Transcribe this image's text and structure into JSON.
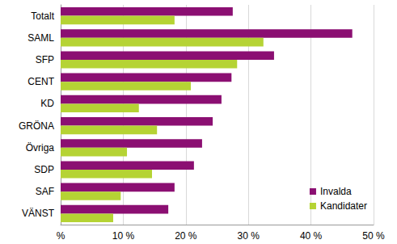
{
  "chart_data": {
    "type": "bar",
    "orientation": "horizontal",
    "categories": [
      "Totalt",
      "SAML",
      "SFP",
      "CENT",
      "KD",
      "GRÖNA",
      "Övriga",
      "SDP",
      "SAF",
      "VÄNST"
    ],
    "series": [
      {
        "name": "Invalda",
        "color": "#8b0f72",
        "values": [
          27.5,
          46.6,
          34.1,
          27.3,
          25.7,
          24.3,
          22.6,
          21.3,
          18.2,
          17.2
        ]
      },
      {
        "name": "Kandidater",
        "color": "#b5d334",
        "values": [
          18.2,
          32.4,
          28.2,
          20.8,
          12.5,
          15.4,
          10.6,
          14.6,
          9.6,
          8.4
        ]
      }
    ],
    "xlim": [
      0,
      50
    ],
    "xticks": [
      {
        "value": 0,
        "label": "%"
      },
      {
        "value": 10,
        "label": "10 %"
      },
      {
        "value": 20,
        "label": "20 %"
      },
      {
        "value": 30,
        "label": "30 %"
      },
      {
        "value": 40,
        "label": "40 %"
      },
      {
        "value": 50,
        "label": "50 %"
      }
    ],
    "grid": true,
    "legend": "bottom-right"
  }
}
